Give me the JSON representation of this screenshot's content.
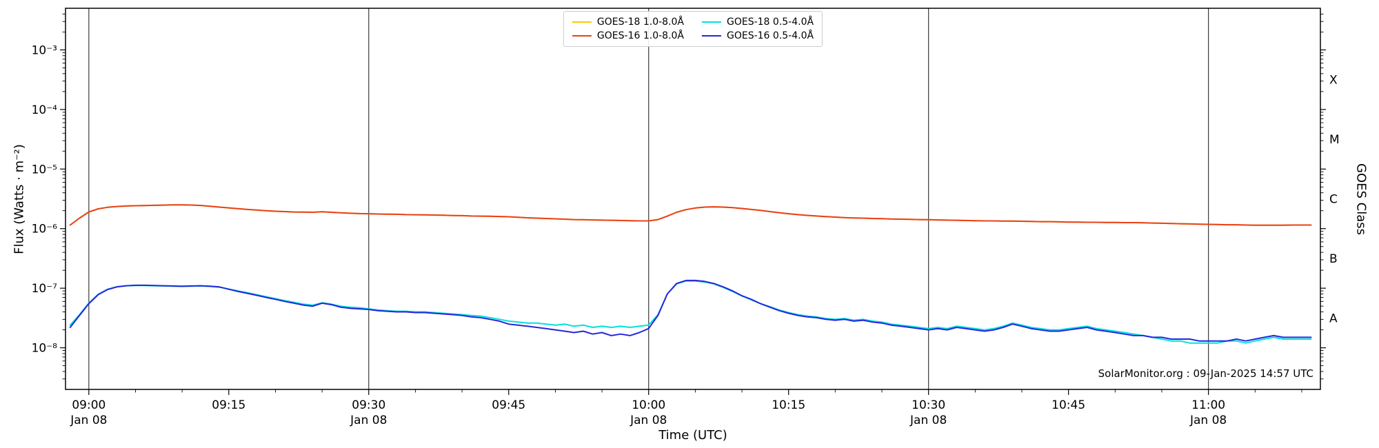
{
  "figure": {
    "background": "#ffffff",
    "annotation": "SolarMonitor.org : 09-Jan-2025 14:57 UTC"
  },
  "chart_data": {
    "type": "line",
    "title": "",
    "xlabel": "Time (UTC)",
    "ylabel": "Flux (Watts · m⁻²)",
    "y2label": "GOES Class",
    "legend_position": "upper center",
    "grid": "vertical-only",
    "colors": {
      "gridline": "#3a3a3a",
      "axis": "#000000"
    },
    "x_axis": {
      "unit": "minutes from 09:00 UTC",
      "date": "Jan 08",
      "xlim_minutes": [
        -2.5,
        132
      ],
      "gridline_minutes": [
        0,
        30,
        60,
        90,
        120
      ],
      "minor_tick_step_min": 5,
      "major_ticks": [
        {
          "minute": 0,
          "label": "09:00",
          "date": "Jan 08"
        },
        {
          "minute": 15,
          "label": "09:15"
        },
        {
          "minute": 30,
          "label": "09:30",
          "date": "Jan 08"
        },
        {
          "minute": 45,
          "label": "09:45"
        },
        {
          "minute": 60,
          "label": "10:00",
          "date": "Jan 08"
        },
        {
          "minute": 75,
          "label": "10:15"
        },
        {
          "minute": 90,
          "label": "10:30",
          "date": "Jan 08"
        },
        {
          "minute": 105,
          "label": "10:45"
        },
        {
          "minute": 120,
          "label": "11:00",
          "date": "Jan 08"
        }
      ]
    },
    "y_axis": {
      "scale": "log",
      "ylim": [
        2e-09,
        0.005
      ],
      "ticks": [
        {
          "value": 0.001,
          "label": "10⁻³"
        },
        {
          "value": 0.0001,
          "label": "10⁻⁴"
        },
        {
          "value": 1e-05,
          "label": "10⁻⁵"
        },
        {
          "value": 1e-06,
          "label": "10⁻⁶"
        },
        {
          "value": 1e-07,
          "label": "10⁻⁷"
        },
        {
          "value": 1e-08,
          "label": "10⁻⁸"
        }
      ]
    },
    "y2_axis": {
      "ticks": [
        {
          "value": 0.000316,
          "label": "X"
        },
        {
          "value": 3.16e-05,
          "label": "M"
        },
        {
          "value": 3.16e-06,
          "label": "C"
        },
        {
          "value": 3.16e-07,
          "label": "B"
        },
        {
          "value": 3.16e-08,
          "label": "A"
        }
      ]
    },
    "x_minutes": [
      -2,
      -1,
      0,
      1,
      2,
      3,
      4,
      5,
      6,
      7,
      8,
      9,
      10,
      11,
      12,
      13,
      14,
      15,
      16,
      17,
      18,
      19,
      20,
      21,
      22,
      23,
      24,
      25,
      26,
      27,
      28,
      29,
      30,
      31,
      32,
      33,
      34,
      35,
      36,
      37,
      38,
      39,
      40,
      41,
      42,
      43,
      44,
      45,
      46,
      47,
      48,
      49,
      50,
      51,
      52,
      53,
      54,
      55,
      56,
      57,
      58,
      59,
      60,
      61,
      62,
      63,
      64,
      65,
      66,
      67,
      68,
      69,
      70,
      71,
      72,
      73,
      74,
      75,
      76,
      77,
      78,
      79,
      80,
      81,
      82,
      83,
      84,
      85,
      86,
      87,
      88,
      89,
      90,
      91,
      92,
      93,
      94,
      95,
      96,
      97,
      98,
      99,
      100,
      101,
      102,
      103,
      104,
      105,
      106,
      107,
      108,
      109,
      110,
      111,
      112,
      113,
      114,
      115,
      116,
      117,
      118,
      119,
      120,
      121,
      122,
      123,
      124,
      125,
      126,
      127,
      128,
      129,
      130,
      131
    ],
    "series": [
      {
        "name": "GOES-18 1.0-8.0Å",
        "color": "#ffc800",
        "values": [
          1.15e-06,
          1.5e-06,
          1.9e-06,
          2.15e-06,
          2.28e-06,
          2.35e-06,
          2.4e-06,
          2.42e-06,
          2.44e-06,
          2.46e-06,
          2.48e-06,
          2.5e-06,
          2.5e-06,
          2.49e-06,
          2.45e-06,
          2.38e-06,
          2.3e-06,
          2.23e-06,
          2.16e-06,
          2.1e-06,
          2.05e-06,
          2e-06,
          1.96e-06,
          1.93e-06,
          1.9e-06,
          1.89e-06,
          1.88e-06,
          1.92e-06,
          1.88e-06,
          1.84e-06,
          1.81e-06,
          1.79e-06,
          1.78e-06,
          1.76e-06,
          1.75e-06,
          1.74e-06,
          1.72e-06,
          1.71e-06,
          1.7e-06,
          1.69e-06,
          1.68e-06,
          1.66e-06,
          1.65e-06,
          1.63e-06,
          1.62e-06,
          1.61e-06,
          1.6e-06,
          1.58e-06,
          1.55e-06,
          1.52e-06,
          1.5e-06,
          1.48e-06,
          1.46e-06,
          1.44e-06,
          1.42e-06,
          1.41e-06,
          1.4e-06,
          1.39e-06,
          1.38e-06,
          1.37e-06,
          1.36e-06,
          1.35e-06,
          1.35e-06,
          1.42e-06,
          1.62e-06,
          1.88e-06,
          2.08e-06,
          2.22e-06,
          2.3e-06,
          2.32e-06,
          2.3e-06,
          2.25e-06,
          2.18e-06,
          2.1e-06,
          2.02e-06,
          1.93e-06,
          1.85e-06,
          1.78e-06,
          1.72e-06,
          1.67e-06,
          1.63e-06,
          1.59e-06,
          1.56e-06,
          1.53e-06,
          1.51e-06,
          1.5e-06,
          1.48e-06,
          1.47e-06,
          1.45e-06,
          1.44e-06,
          1.43e-06,
          1.42e-06,
          1.41e-06,
          1.4e-06,
          1.39e-06,
          1.38e-06,
          1.37e-06,
          1.36e-06,
          1.35e-06,
          1.35e-06,
          1.34e-06,
          1.34e-06,
          1.33e-06,
          1.32e-06,
          1.31e-06,
          1.31e-06,
          1.3e-06,
          1.29e-06,
          1.29e-06,
          1.28e-06,
          1.28e-06,
          1.27e-06,
          1.27e-06,
          1.26e-06,
          1.26e-06,
          1.25e-06,
          1.24e-06,
          1.23e-06,
          1.22e-06,
          1.21e-06,
          1.2e-06,
          1.19e-06,
          1.18e-06,
          1.17e-06,
          1.16e-06,
          1.16e-06,
          1.15e-06,
          1.14e-06,
          1.14e-06,
          1.14e-06,
          1.14e-06,
          1.15e-06,
          1.15e-06,
          1.15e-06
        ]
      },
      {
        "name": "GOES-16 1.0-8.0Å",
        "color": "#e8401a",
        "values": [
          1.15e-06,
          1.5e-06,
          1.9e-06,
          2.15e-06,
          2.28e-06,
          2.35e-06,
          2.4e-06,
          2.42e-06,
          2.44e-06,
          2.46e-06,
          2.48e-06,
          2.5e-06,
          2.5e-06,
          2.49e-06,
          2.45e-06,
          2.38e-06,
          2.3e-06,
          2.23e-06,
          2.16e-06,
          2.1e-06,
          2.05e-06,
          2e-06,
          1.96e-06,
          1.93e-06,
          1.9e-06,
          1.89e-06,
          1.88e-06,
          1.92e-06,
          1.88e-06,
          1.84e-06,
          1.81e-06,
          1.79e-06,
          1.78e-06,
          1.76e-06,
          1.75e-06,
          1.74e-06,
          1.72e-06,
          1.71e-06,
          1.7e-06,
          1.69e-06,
          1.68e-06,
          1.66e-06,
          1.65e-06,
          1.63e-06,
          1.62e-06,
          1.61e-06,
          1.6e-06,
          1.58e-06,
          1.55e-06,
          1.52e-06,
          1.5e-06,
          1.48e-06,
          1.46e-06,
          1.44e-06,
          1.42e-06,
          1.41e-06,
          1.4e-06,
          1.39e-06,
          1.38e-06,
          1.37e-06,
          1.36e-06,
          1.35e-06,
          1.35e-06,
          1.42e-06,
          1.62e-06,
          1.88e-06,
          2.08e-06,
          2.22e-06,
          2.3e-06,
          2.32e-06,
          2.3e-06,
          2.25e-06,
          2.18e-06,
          2.1e-06,
          2.02e-06,
          1.93e-06,
          1.85e-06,
          1.78e-06,
          1.72e-06,
          1.67e-06,
          1.63e-06,
          1.59e-06,
          1.56e-06,
          1.53e-06,
          1.51e-06,
          1.5e-06,
          1.48e-06,
          1.47e-06,
          1.45e-06,
          1.44e-06,
          1.43e-06,
          1.42e-06,
          1.41e-06,
          1.4e-06,
          1.39e-06,
          1.38e-06,
          1.37e-06,
          1.36e-06,
          1.35e-06,
          1.35e-06,
          1.34e-06,
          1.34e-06,
          1.33e-06,
          1.32e-06,
          1.31e-06,
          1.31e-06,
          1.3e-06,
          1.29e-06,
          1.29e-06,
          1.28e-06,
          1.28e-06,
          1.27e-06,
          1.27e-06,
          1.26e-06,
          1.26e-06,
          1.25e-06,
          1.24e-06,
          1.23e-06,
          1.22e-06,
          1.21e-06,
          1.2e-06,
          1.19e-06,
          1.18e-06,
          1.17e-06,
          1.16e-06,
          1.16e-06,
          1.15e-06,
          1.14e-06,
          1.14e-06,
          1.14e-06,
          1.14e-06,
          1.15e-06,
          1.15e-06,
          1.15e-06
        ]
      },
      {
        "name": "GOES-18 0.5-4.0Å",
        "color": "#00e0e0",
        "values": [
          2.4e-08,
          3.6e-08,
          5.6e-08,
          7.9e-08,
          9.6e-08,
          1.06e-07,
          1.1e-07,
          1.11e-07,
          1.11e-07,
          1.1e-07,
          1.09e-07,
          1.08e-07,
          1.07e-07,
          1.08e-07,
          1.09e-07,
          1.07e-07,
          1.04e-07,
          9.7e-08,
          9e-08,
          8.4e-08,
          7.8e-08,
          7.2e-08,
          6.7e-08,
          6.2e-08,
          5.8e-08,
          5.4e-08,
          5.2e-08,
          5.7e-08,
          5.4e-08,
          5e-08,
          4.8e-08,
          4.7e-08,
          4.5e-08,
          4.3e-08,
          4.2e-08,
          4.1e-08,
          4.1e-08,
          4e-08,
          4e-08,
          3.9e-08,
          3.8e-08,
          3.7e-08,
          3.6e-08,
          3.5e-08,
          3.4e-08,
          3.2e-08,
          3e-08,
          2.8e-08,
          2.7e-08,
          2.6e-08,
          2.6e-08,
          2.5e-08,
          2.4e-08,
          2.5e-08,
          2.3e-08,
          2.4e-08,
          2.2e-08,
          2.3e-08,
          2.2e-08,
          2.3e-08,
          2.2e-08,
          2.3e-08,
          2.4e-08,
          3.6e-08,
          8e-08,
          1.18e-07,
          1.32e-07,
          1.32e-07,
          1.27e-07,
          1.18e-07,
          1.03e-07,
          8.8e-08,
          7.4e-08,
          6.4e-08,
          5.5e-08,
          4.9e-08,
          4.3e-08,
          3.9e-08,
          3.6e-08,
          3.4e-08,
          3.3e-08,
          3.1e-08,
          3e-08,
          3.1e-08,
          2.9e-08,
          3e-08,
          2.8e-08,
          2.7e-08,
          2.5e-08,
          2.4e-08,
          2.3e-08,
          2.2e-08,
          2.1e-08,
          2.2e-08,
          2.1e-08,
          2.3e-08,
          2.2e-08,
          2.1e-08,
          2e-08,
          2.1e-08,
          2.3e-08,
          2.6e-08,
          2.4e-08,
          2.2e-08,
          2.1e-08,
          2e-08,
          2e-08,
          2.1e-08,
          2.2e-08,
          2.3e-08,
          2.1e-08,
          2e-08,
          1.9e-08,
          1.8e-08,
          1.7e-08,
          1.6e-08,
          1.5e-08,
          1.4e-08,
          1.3e-08,
          1.3e-08,
          1.2e-08,
          1.2e-08,
          1.2e-08,
          1.2e-08,
          1.3e-08,
          1.3e-08,
          1.2e-08,
          1.3e-08,
          1.4e-08,
          1.5e-08,
          1.4e-08,
          1.4e-08,
          1.4e-08,
          1.4e-08
        ]
      },
      {
        "name": "GOES-16 0.5-4.0Å",
        "color": "#2525dd",
        "values": [
          2.2e-08,
          3.5e-08,
          5.5e-08,
          7.8e-08,
          9.5e-08,
          1.05e-07,
          1.1e-07,
          1.12e-07,
          1.12e-07,
          1.11e-07,
          1.1e-07,
          1.09e-07,
          1.08e-07,
          1.09e-07,
          1.1e-07,
          1.08e-07,
          1.05e-07,
          9.6e-08,
          8.8e-08,
          8.2e-08,
          7.6e-08,
          7e-08,
          6.5e-08,
          6e-08,
          5.6e-08,
          5.2e-08,
          5e-08,
          5.6e-08,
          5.3e-08,
          4.8e-08,
          4.6e-08,
          4.5e-08,
          4.4e-08,
          4.2e-08,
          4.1e-08,
          4e-08,
          4e-08,
          3.9e-08,
          3.9e-08,
          3.8e-08,
          3.7e-08,
          3.6e-08,
          3.5e-08,
          3.3e-08,
          3.2e-08,
          3e-08,
          2.8e-08,
          2.5e-08,
          2.4e-08,
          2.3e-08,
          2.2e-08,
          2.1e-08,
          2e-08,
          1.9e-08,
          1.8e-08,
          1.9e-08,
          1.7e-08,
          1.8e-08,
          1.6e-08,
          1.7e-08,
          1.6e-08,
          1.8e-08,
          2.1e-08,
          3.5e-08,
          8e-08,
          1.2e-07,
          1.35e-07,
          1.35e-07,
          1.3e-07,
          1.2e-07,
          1.05e-07,
          9e-08,
          7.5e-08,
          6.5e-08,
          5.5e-08,
          4.8e-08,
          4.2e-08,
          3.8e-08,
          3.5e-08,
          3.3e-08,
          3.2e-08,
          3e-08,
          2.9e-08,
          3e-08,
          2.8e-08,
          2.9e-08,
          2.7e-08,
          2.6e-08,
          2.4e-08,
          2.3e-08,
          2.2e-08,
          2.1e-08,
          2e-08,
          2.1e-08,
          2e-08,
          2.2e-08,
          2.1e-08,
          2e-08,
          1.9e-08,
          2e-08,
          2.2e-08,
          2.5e-08,
          2.3e-08,
          2.1e-08,
          2e-08,
          1.9e-08,
          1.9e-08,
          2e-08,
          2.1e-08,
          2.2e-08,
          2e-08,
          1.9e-08,
          1.8e-08,
          1.7e-08,
          1.6e-08,
          1.6e-08,
          1.5e-08,
          1.5e-08,
          1.4e-08,
          1.4e-08,
          1.4e-08,
          1.3e-08,
          1.3e-08,
          1.3e-08,
          1.3e-08,
          1.4e-08,
          1.3e-08,
          1.4e-08,
          1.5e-08,
          1.6e-08,
          1.5e-08,
          1.5e-08,
          1.5e-08,
          1.5e-08
        ]
      }
    ]
  }
}
